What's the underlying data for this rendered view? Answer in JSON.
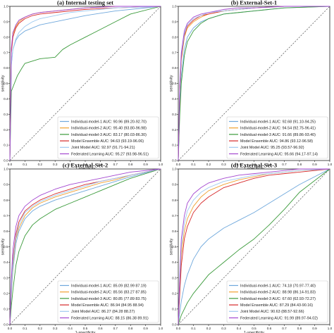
{
  "colors": {
    "Individual-model-1": "#6fa8dc",
    "Individual-model-2": "#f0a030",
    "Individual-model-3": "#3a9a3a",
    "Model Ensemble": "#d62728",
    "Joint Model": "#9ec9f0",
    "Federated Learning": "#a347d0",
    "chance": "#555555"
  },
  "series_names": [
    "Individual-model-1",
    "Individual-model-2",
    "Individual-model-3",
    "Model Ensemble",
    "Joint Model",
    "Federated Learning"
  ],
  "chart_data": [
    {
      "type": "line",
      "title": "(a) Internal testing set",
      "xlabel": "1-specificity",
      "ylabel": "sensitivity",
      "xlim": [
        0,
        1
      ],
      "ylim": [
        0,
        1
      ],
      "ticks": [
        "0.0",
        "0.1",
        "0.2",
        "0.3",
        "0.4",
        "0.5",
        "0.6",
        "0.7",
        "0.8",
        "0.9",
        "1.0"
      ],
      "legend_position": "lower-right",
      "legend": [
        "Individual-model-1 AUC: 90.96 (89.20-92.70)",
        "Individual-model-2 AUC: 95.40 (93.80-96.98)",
        "Individual-model-3 AUC: 83.17 (80.03-86.30)",
        "Model Ensemble AUC: 94.63 (93.19-96.06)",
        "Joint Model AUC: 92.97 (91.71-94.21)",
        "Federated Learning AUC: 95.27 (93.98-96.51)"
      ],
      "series": [
        {
          "x": [
            0,
            0.01,
            0.02,
            0.04,
            0.06,
            0.1,
            0.15,
            0.2,
            0.3,
            0.4,
            0.5,
            0.7,
            1
          ],
          "y": [
            0,
            0.62,
            0.72,
            0.78,
            0.81,
            0.84,
            0.86,
            0.88,
            0.9,
            0.92,
            0.94,
            0.97,
            1
          ]
        },
        {
          "x": [
            0,
            0.01,
            0.02,
            0.04,
            0.06,
            0.1,
            0.15,
            0.2,
            0.3,
            0.4,
            0.5,
            0.7,
            1
          ],
          "y": [
            0,
            0.72,
            0.82,
            0.87,
            0.9,
            0.93,
            0.95,
            0.96,
            0.97,
            0.98,
            0.99,
            1,
            1
          ]
        },
        {
          "x": [
            0,
            0.01,
            0.03,
            0.05,
            0.08,
            0.1,
            0.2,
            0.3,
            0.35,
            0.4,
            0.5,
            0.6,
            0.7,
            0.8,
            1
          ],
          "y": [
            0,
            0.45,
            0.5,
            0.55,
            0.6,
            0.63,
            0.66,
            0.67,
            0.72,
            0.75,
            0.8,
            0.85,
            0.9,
            0.95,
            1
          ]
        },
        {
          "x": [
            0,
            0.01,
            0.02,
            0.04,
            0.06,
            0.1,
            0.15,
            0.2,
            0.3,
            0.4,
            0.5,
            0.7,
            1
          ],
          "y": [
            0,
            0.7,
            0.8,
            0.86,
            0.89,
            0.92,
            0.94,
            0.95,
            0.96,
            0.97,
            0.98,
            0.99,
            1
          ]
        },
        {
          "x": [
            0,
            0.01,
            0.02,
            0.04,
            0.06,
            0.1,
            0.15,
            0.2,
            0.3,
            0.4,
            0.5,
            0.7,
            1
          ],
          "y": [
            0,
            0.63,
            0.72,
            0.79,
            0.83,
            0.87,
            0.9,
            0.92,
            0.94,
            0.96,
            0.97,
            0.99,
            1
          ]
        },
        {
          "x": [
            0,
            0.01,
            0.02,
            0.04,
            0.06,
            0.1,
            0.15,
            0.2,
            0.3,
            0.4,
            0.5,
            0.7,
            1
          ],
          "y": [
            0,
            0.73,
            0.83,
            0.88,
            0.91,
            0.93,
            0.95,
            0.96,
            0.97,
            0.98,
            0.99,
            1,
            1
          ]
        }
      ]
    },
    {
      "type": "line",
      "title": "(b) External-Set-1",
      "xlabel": "1-specificity",
      "ylabel": "sensitivity",
      "xlim": [
        0,
        1
      ],
      "ylim": [
        0,
        1
      ],
      "ticks": [
        "0.0",
        "0.1",
        "0.2",
        "0.3",
        "0.4",
        "0.5",
        "0.6",
        "0.7",
        "0.8",
        "0.9",
        "1.0"
      ],
      "legend_position": "lower-right",
      "legend": [
        "Individual-model-1 AUC: 92.68 (91.10-94.25)",
        "Individual-model-2 AUC: 94.54 (92.75-96.41)",
        "Individual-model-3 AUC: 91.66 (89.86-93.40)",
        "Model Ensemble AUC: 94.86 (93.12-96.58)",
        "Joint Model AUC: 95.25 (93.57-96.92)",
        "Federated Learning AUC: 95.66 (94.17-97.14)"
      ],
      "series": [
        {
          "x": [
            0,
            0.01,
            0.02,
            0.04,
            0.06,
            0.1,
            0.15,
            0.2,
            0.3,
            0.4,
            0.5,
            0.7,
            1
          ],
          "y": [
            0,
            0.35,
            0.55,
            0.72,
            0.8,
            0.86,
            0.9,
            0.92,
            0.95,
            0.96,
            0.97,
            0.99,
            1
          ]
        },
        {
          "x": [
            0,
            0.01,
            0.02,
            0.04,
            0.06,
            0.1,
            0.15,
            0.2,
            0.3,
            0.4,
            0.5,
            0.7,
            1
          ],
          "y": [
            0,
            0.45,
            0.65,
            0.8,
            0.86,
            0.9,
            0.93,
            0.95,
            0.97,
            0.98,
            0.99,
            1,
            1
          ]
        },
        {
          "x": [
            0,
            0.01,
            0.02,
            0.04,
            0.06,
            0.1,
            0.15,
            0.2,
            0.3,
            0.4,
            0.5,
            0.7,
            1
          ],
          "y": [
            0,
            0.3,
            0.5,
            0.68,
            0.77,
            0.84,
            0.89,
            0.92,
            0.95,
            0.96,
            0.97,
            0.99,
            1
          ]
        },
        {
          "x": [
            0,
            0.01,
            0.02,
            0.04,
            0.06,
            0.1,
            0.15,
            0.2,
            0.3,
            0.4,
            0.5,
            0.7,
            1
          ],
          "y": [
            0,
            0.46,
            0.66,
            0.81,
            0.87,
            0.91,
            0.94,
            0.95,
            0.97,
            0.98,
            0.99,
            1,
            1
          ]
        },
        {
          "x": [
            0,
            0.01,
            0.02,
            0.04,
            0.06,
            0.1,
            0.15,
            0.2,
            0.3,
            0.4,
            0.5,
            0.7,
            1
          ],
          "y": [
            0,
            0.48,
            0.68,
            0.82,
            0.88,
            0.92,
            0.94,
            0.96,
            0.97,
            0.98,
            0.99,
            1,
            1
          ]
        },
        {
          "x": [
            0,
            0.01,
            0.02,
            0.04,
            0.06,
            0.1,
            0.15,
            0.2,
            0.3,
            0.4,
            0.5,
            0.7,
            1
          ],
          "y": [
            0,
            0.5,
            0.7,
            0.84,
            0.89,
            0.93,
            0.95,
            0.96,
            0.98,
            0.99,
            0.99,
            1,
            1
          ]
        }
      ]
    },
    {
      "type": "line",
      "title": "(c) External-Set-2",
      "xlabel": "1-specificity",
      "ylabel": "sensitivity",
      "xlim": [
        0,
        1
      ],
      "ylim": [
        0,
        1
      ],
      "ticks": [
        "0.0",
        "0.1",
        "0.2",
        "0.3",
        "0.4",
        "0.5",
        "0.6",
        "0.7",
        "0.8",
        "0.9",
        "1.0"
      ],
      "legend_position": "lower-right",
      "legend": [
        "Individual-model-1 AUC: 85.09 (82.99 87.19)",
        "Individual-model-2 AUC: 85.56 (83.27 87.85)",
        "Individual-model-3 AUC: 80.85 (77.89 83.75)",
        "Model Ensemble AUC: 86.94 (84.95 88.94)",
        "Joint Model AUC: 86.27 (84.28 88.27)",
        "Federated Learning AUC: 88.15 (86.38 89.91)"
      ],
      "series": [
        {
          "x": [
            0,
            0.01,
            0.02,
            0.04,
            0.06,
            0.1,
            0.15,
            0.2,
            0.3,
            0.4,
            0.5,
            0.6,
            0.7,
            0.8,
            1
          ],
          "y": [
            0,
            0.2,
            0.35,
            0.52,
            0.6,
            0.68,
            0.73,
            0.76,
            0.8,
            0.83,
            0.86,
            0.89,
            0.92,
            0.95,
            1
          ]
        },
        {
          "x": [
            0,
            0.01,
            0.02,
            0.04,
            0.06,
            0.1,
            0.15,
            0.2,
            0.3,
            0.4,
            0.5,
            0.6,
            0.7,
            0.8,
            1
          ],
          "y": [
            0,
            0.22,
            0.38,
            0.55,
            0.62,
            0.7,
            0.75,
            0.78,
            0.82,
            0.85,
            0.88,
            0.91,
            0.93,
            0.96,
            1
          ]
        },
        {
          "x": [
            0,
            0.01,
            0.02,
            0.04,
            0.06,
            0.1,
            0.15,
            0.2,
            0.3,
            0.4,
            0.5,
            0.6,
            0.7,
            0.8,
            1
          ],
          "y": [
            0,
            0.12,
            0.22,
            0.38,
            0.47,
            0.57,
            0.64,
            0.68,
            0.74,
            0.78,
            0.82,
            0.86,
            0.9,
            0.94,
            1
          ]
        },
        {
          "x": [
            0,
            0.01,
            0.02,
            0.04,
            0.06,
            0.1,
            0.15,
            0.2,
            0.3,
            0.4,
            0.5,
            0.6,
            0.7,
            0.8,
            1
          ],
          "y": [
            0,
            0.25,
            0.42,
            0.58,
            0.66,
            0.73,
            0.77,
            0.8,
            0.84,
            0.87,
            0.9,
            0.92,
            0.94,
            0.96,
            1
          ]
        },
        {
          "x": [
            0,
            0.01,
            0.02,
            0.04,
            0.06,
            0.1,
            0.15,
            0.2,
            0.3,
            0.4,
            0.5,
            0.6,
            0.7,
            0.8,
            1
          ],
          "y": [
            0,
            0.23,
            0.4,
            0.56,
            0.64,
            0.72,
            0.76,
            0.79,
            0.83,
            0.86,
            0.89,
            0.92,
            0.94,
            0.96,
            1
          ]
        },
        {
          "x": [
            0,
            0.01,
            0.02,
            0.04,
            0.06,
            0.1,
            0.15,
            0.2,
            0.3,
            0.4,
            0.5,
            0.6,
            0.7,
            0.8,
            1
          ],
          "y": [
            0,
            0.3,
            0.48,
            0.63,
            0.7,
            0.76,
            0.8,
            0.83,
            0.87,
            0.9,
            0.92,
            0.94,
            0.96,
            0.98,
            1
          ]
        }
      ]
    },
    {
      "type": "line",
      "title": "(d) External-Set-3",
      "xlabel": "1-specificity",
      "ylabel": "sensitivity",
      "xlim": [
        0,
        1
      ],
      "ylim": [
        0,
        1
      ],
      "ticks": [
        "0.0",
        "0.1",
        "0.2",
        "0.3",
        "0.4",
        "0.5",
        "0.6",
        "0.7",
        "0.8",
        "0.9",
        "1.0"
      ],
      "legend_position": "lower-right",
      "legend": [
        "Individual-model-1 AUC: 74.18 (70.97-77.40)",
        "Individual-model-2 AUC: 88.98 (86.14-91.83)",
        "Individual-model-3 AUC: 67.60 (62.93-72.27)",
        "Model Ensemble AUC: 87.29 (84.43-90.16)",
        "Joint Model AUC: 90.63 (88.57-92.66)",
        "Federated Learning AUC: 91.99 (89.97-94.02)"
      ],
      "series": [
        {
          "x": [
            0,
            0.01,
            0.02,
            0.04,
            0.06,
            0.1,
            0.15,
            0.2,
            0.3,
            0.4,
            0.5,
            0.6,
            0.7,
            0.8,
            1
          ],
          "y": [
            0,
            0.08,
            0.15,
            0.25,
            0.32,
            0.42,
            0.5,
            0.55,
            0.62,
            0.67,
            0.72,
            0.78,
            0.84,
            0.9,
            1
          ]
        },
        {
          "x": [
            0,
            0.01,
            0.02,
            0.04,
            0.06,
            0.1,
            0.15,
            0.2,
            0.3,
            0.4,
            0.5,
            0.6,
            0.7,
            0.8,
            1
          ],
          "y": [
            0,
            0.25,
            0.45,
            0.6,
            0.68,
            0.76,
            0.82,
            0.86,
            0.9,
            0.93,
            0.95,
            0.97,
            0.98,
            0.99,
            1
          ]
        },
        {
          "x": [
            0,
            0.01,
            0.02,
            0.04,
            0.06,
            0.1,
            0.15,
            0.2,
            0.25,
            0.3,
            0.4,
            0.5,
            0.6,
            0.7,
            0.8,
            1
          ],
          "y": [
            0,
            0.03,
            0.06,
            0.1,
            0.14,
            0.2,
            0.26,
            0.32,
            0.36,
            0.4,
            0.48,
            0.55,
            0.64,
            0.74,
            0.85,
            1
          ]
        },
        {
          "x": [
            0,
            0.01,
            0.02,
            0.04,
            0.06,
            0.1,
            0.15,
            0.2,
            0.3,
            0.4,
            0.5,
            0.6,
            0.7,
            0.8,
            1
          ],
          "y": [
            0,
            0.2,
            0.38,
            0.55,
            0.63,
            0.72,
            0.78,
            0.82,
            0.88,
            0.91,
            0.94,
            0.96,
            0.97,
            0.98,
            1
          ]
        },
        {
          "x": [
            0,
            0.01,
            0.02,
            0.04,
            0.06,
            0.1,
            0.15,
            0.2,
            0.3,
            0.4,
            0.5,
            0.6,
            0.7,
            0.8,
            1
          ],
          "y": [
            0,
            0.28,
            0.5,
            0.65,
            0.73,
            0.8,
            0.85,
            0.88,
            0.92,
            0.94,
            0.96,
            0.97,
            0.98,
            0.99,
            1
          ]
        },
        {
          "x": [
            0,
            0.01,
            0.02,
            0.04,
            0.06,
            0.1,
            0.15,
            0.2,
            0.3,
            0.4,
            0.5,
            0.6,
            0.7,
            0.8,
            1
          ],
          "y": [
            0,
            0.32,
            0.55,
            0.7,
            0.78,
            0.84,
            0.88,
            0.91,
            0.94,
            0.96,
            0.97,
            0.98,
            0.99,
            1,
            1
          ]
        }
      ]
    }
  ]
}
